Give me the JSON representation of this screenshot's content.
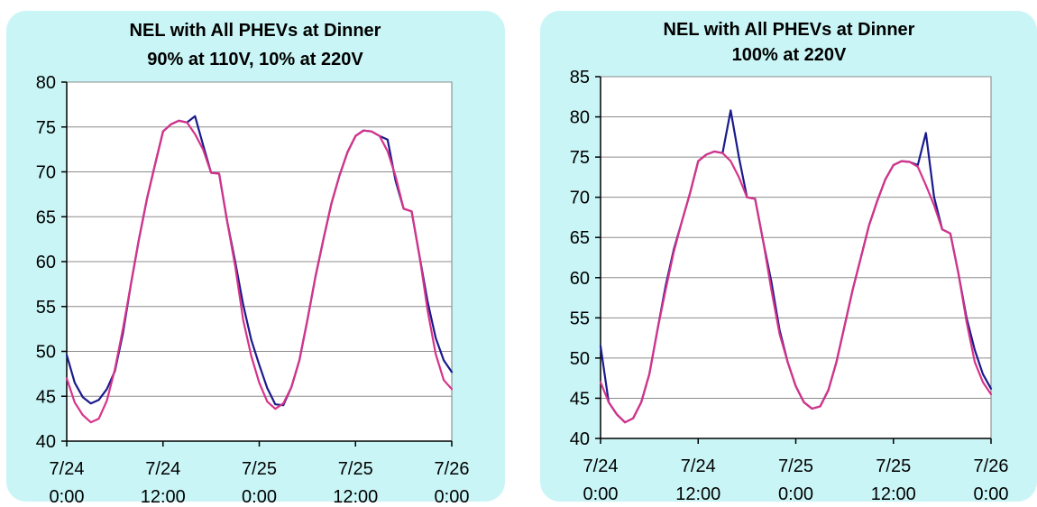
{
  "colors": {
    "panel_bg": "#c9f5f6",
    "series_navy": "#1a1a8c",
    "series_magenta": "#d6338a",
    "grid": "#8c8c8c"
  },
  "chart_data": [
    {
      "type": "line",
      "title": [
        "NEL with All PHEVs at Dinner",
        "90% at 110V, 10% at 220V"
      ],
      "xlabel": "",
      "ylabel": "",
      "ylim": [
        40,
        80
      ],
      "yticks": [
        40,
        45,
        50,
        55,
        60,
        65,
        70,
        75,
        80
      ],
      "xlim": [
        0,
        48
      ],
      "xticks": [
        {
          "x": 0,
          "line1": "7/24",
          "line2": "0:00"
        },
        {
          "x": 12,
          "line1": "7/24",
          "line2": "12:00"
        },
        {
          "x": 24,
          "line1": "7/25",
          "line2": "0:00"
        },
        {
          "x": 36,
          "line1": "7/25",
          "line2": "12:00"
        },
        {
          "x": 48,
          "line1": "7/26",
          "line2": "0:00"
        }
      ],
      "grid": "horizontal",
      "series": [
        {
          "color": "#1a1a8c",
          "x": [
            0,
            1,
            2,
            3,
            4,
            5,
            6,
            7,
            8,
            9,
            10,
            11,
            12,
            13,
            14,
            15,
            16,
            17,
            18,
            19,
            20,
            21,
            22,
            23,
            24,
            25,
            26,
            27,
            28,
            29,
            30,
            31,
            32,
            33,
            34,
            35,
            36,
            37,
            38,
            39,
            40,
            41,
            42,
            43,
            44,
            45,
            46,
            47,
            48
          ],
          "y": [
            49.6,
            46.5,
            44.9,
            44.2,
            44.6,
            45.8,
            47.8,
            52,
            57.5,
            62.5,
            67,
            70.8,
            74.5,
            75.3,
            75.7,
            75.5,
            76.2,
            73,
            69.9,
            69.8,
            64.5,
            60,
            55.2,
            51.3,
            48.5,
            45.9,
            44.1,
            44,
            46,
            49,
            53.5,
            58.3,
            62.5,
            66.5,
            69.6,
            72.2,
            74,
            74.6,
            74.5,
            74,
            73.6,
            69,
            65.9,
            65.6,
            60.5,
            55.5,
            51.5,
            49,
            47.7
          ]
        },
        {
          "color": "#d6338a",
          "x": [
            0,
            1,
            2,
            3,
            4,
            5,
            6,
            7,
            8,
            9,
            10,
            11,
            12,
            13,
            14,
            15,
            16,
            17,
            18,
            19,
            20,
            21,
            22,
            23,
            24,
            25,
            26,
            27,
            28,
            29,
            30,
            31,
            32,
            33,
            34,
            35,
            36,
            37,
            38,
            39,
            40,
            41,
            42,
            43,
            44,
            45,
            46,
            47,
            48
          ],
          "y": [
            47,
            44.3,
            42.9,
            42.1,
            42.5,
            44.5,
            48,
            52.5,
            57.5,
            62.5,
            67,
            70.8,
            74.5,
            75.3,
            75.7,
            75.5,
            74.2,
            72.5,
            69.9,
            69.8,
            64.5,
            59.5,
            53.5,
            49.5,
            46.5,
            44.4,
            43.6,
            44.2,
            46,
            49,
            53.5,
            58.3,
            62.5,
            66.5,
            69.6,
            72.2,
            74,
            74.6,
            74.5,
            74,
            72.3,
            69.5,
            65.9,
            65.6,
            60.5,
            54.5,
            49.7,
            46.8,
            45.8
          ]
        }
      ]
    },
    {
      "type": "line",
      "title": [
        "NEL with All PHEVs at Dinner",
        "100% at 220V"
      ],
      "xlabel": "",
      "ylabel": "",
      "ylim": [
        40,
        85
      ],
      "yticks": [
        40,
        45,
        50,
        55,
        60,
        65,
        70,
        75,
        80,
        85
      ],
      "xlim": [
        0,
        48
      ],
      "xticks": [
        {
          "x": 0,
          "line1": "7/24",
          "line2": "0:00"
        },
        {
          "x": 12,
          "line1": "7/24",
          "line2": "12:00"
        },
        {
          "x": 24,
          "line1": "7/25",
          "line2": "0:00"
        },
        {
          "x": 36,
          "line1": "7/25",
          "line2": "12:00"
        },
        {
          "x": 48,
          "line1": "7/26",
          "line2": "0:00"
        }
      ],
      "grid": "horizontal",
      "series": [
        {
          "color": "#1a1a8c",
          "x": [
            0,
            1,
            2,
            3,
            4,
            5,
            6,
            7,
            8,
            9,
            10,
            11,
            12,
            13,
            14,
            15,
            16,
            17,
            18,
            19,
            20,
            21,
            22,
            23,
            24,
            25,
            26,
            27,
            28,
            29,
            30,
            31,
            32,
            33,
            34,
            35,
            36,
            37,
            38,
            39,
            40,
            41,
            42,
            43,
            44,
            45,
            46,
            47,
            48
          ],
          "y": [
            51.5,
            44.5,
            43,
            42,
            42.5,
            44.5,
            48,
            53.5,
            59,
            63.5,
            67,
            70.5,
            74.5,
            75.3,
            75.7,
            75.5,
            80.8,
            75,
            70,
            69.8,
            64.5,
            59.5,
            53.5,
            49.5,
            46.5,
            44.5,
            43.7,
            44,
            46,
            49.5,
            54,
            58.5,
            62.5,
            66.5,
            69.5,
            72.2,
            74,
            74.5,
            74.4,
            74,
            78,
            70,
            66,
            65.5,
            60.5,
            55,
            51,
            48,
            46.2
          ]
        },
        {
          "color": "#d6338a",
          "x": [
            0,
            1,
            2,
            3,
            4,
            5,
            6,
            7,
            8,
            9,
            10,
            11,
            12,
            13,
            14,
            15,
            16,
            17,
            18,
            19,
            20,
            21,
            22,
            23,
            24,
            25,
            26,
            27,
            28,
            29,
            30,
            31,
            32,
            33,
            34,
            35,
            36,
            37,
            38,
            39,
            40,
            41,
            42,
            43,
            44,
            45,
            46,
            47,
            48
          ],
          "y": [
            47,
            44.5,
            43,
            42,
            42.5,
            44.5,
            48,
            53.5,
            58.5,
            63.2,
            67,
            70.5,
            74.5,
            75.3,
            75.7,
            75.5,
            74.5,
            72.5,
            70,
            69.8,
            64.5,
            58.5,
            53,
            49.5,
            46.5,
            44.5,
            43.7,
            44,
            46,
            49.5,
            54,
            58.5,
            62.5,
            66.5,
            69.5,
            72.2,
            74,
            74.5,
            74.4,
            73.8,
            71.5,
            69,
            66,
            65.5,
            60.5,
            54.5,
            49.5,
            47,
            45.5
          ]
        }
      ]
    }
  ]
}
